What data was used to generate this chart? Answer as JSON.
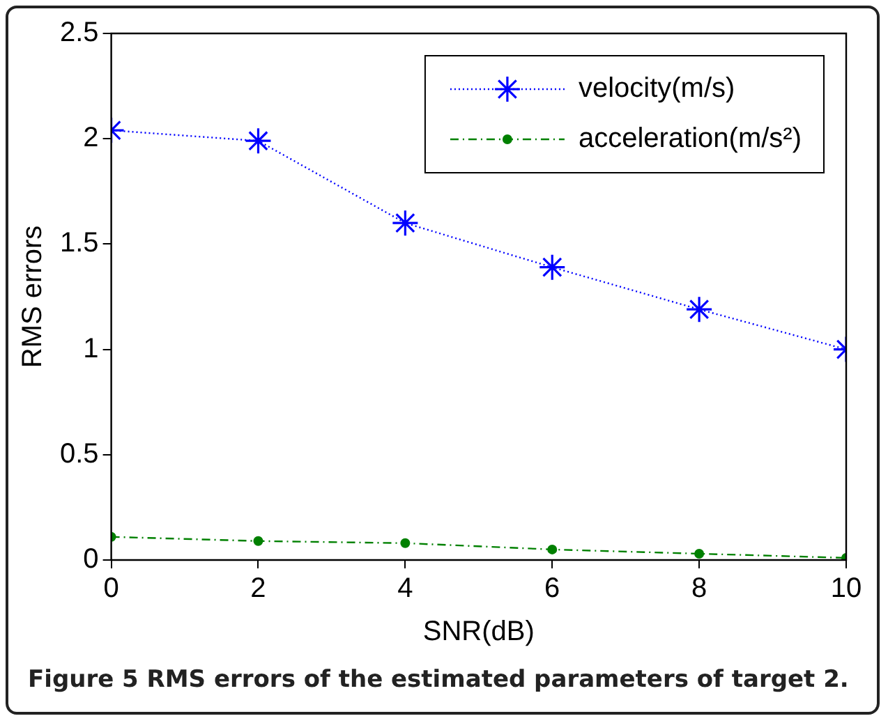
{
  "chart_data": {
    "type": "line",
    "xlabel": "SNR(dB)",
    "ylabel": "RMS errors",
    "x": [
      0,
      2,
      4,
      6,
      8,
      10
    ],
    "series": [
      {
        "name": "velocity(m/s)",
        "color": "#0000ff",
        "values": [
          2.04,
          1.99,
          1.6,
          1.39,
          1.19,
          1.0
        ],
        "marker": "cross",
        "line_style": "dotted"
      },
      {
        "name": "acceleration(m/s²)",
        "color": "#008000",
        "values": [
          0.11,
          0.09,
          0.08,
          0.05,
          0.03,
          0.01
        ],
        "marker": "circle",
        "line_style": "dashed"
      }
    ],
    "xlim": [
      0,
      10
    ],
    "xticks": [
      0,
      2,
      4,
      6,
      8,
      10
    ],
    "ylim": [
      0,
      2.5
    ],
    "yticks": [
      0,
      0.5,
      1,
      1.5,
      2,
      2.5
    ],
    "grid": false,
    "legend": "top right",
    "annotations": [
      "Figure 5 RMS errors of the estimated parameters of target 2."
    ]
  }
}
